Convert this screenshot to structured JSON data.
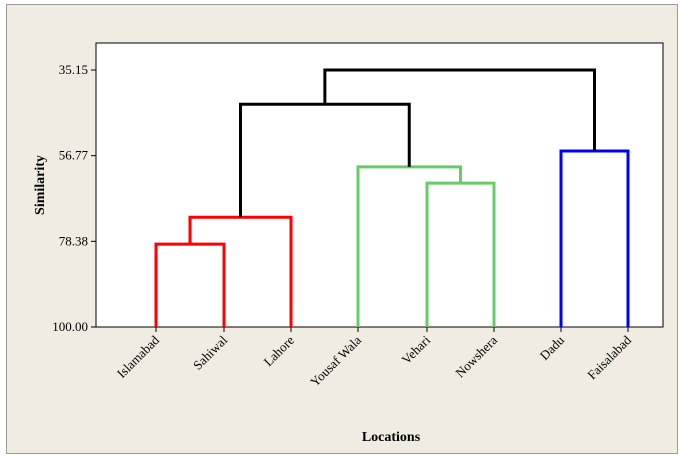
{
  "chart_data": {
    "type": "dendrogram",
    "title": "",
    "xlabel": "Locations",
    "ylabel": "Similarity",
    "ylim": [
      100.0,
      30.0
    ],
    "yticks": [
      35.15,
      56.77,
      78.38,
      100.0
    ],
    "ytick_labels": [
      "35.15",
      "56.77",
      "78.38",
      "100.00"
    ],
    "categories": [
      "Islamabad",
      "Sahiwal",
      "Lahore",
      "Yousaf Wala",
      "Vehari",
      "Nowshera",
      "Dadu",
      "Faisalabad"
    ],
    "merges": [
      {
        "left": 0,
        "right": 1,
        "similarity": 79.1,
        "color": "#ff0000"
      },
      {
        "left": 8,
        "right": 2,
        "similarity": 72.3,
        "color": "#ff0000"
      },
      {
        "left": 4,
        "right": 5,
        "similarity": 63.7,
        "color": "#66cc66"
      },
      {
        "left": 3,
        "right": 10,
        "similarity": 59.6,
        "color": "#66cc66"
      },
      {
        "left": 6,
        "right": 7,
        "similarity": 55.6,
        "color": "#0000ff"
      },
      {
        "left": 9,
        "right": 11,
        "similarity": 43.8,
        "color": "#000000"
      },
      {
        "left": 13,
        "right": 12,
        "similarity": 35.15,
        "color": "#000000"
      }
    ],
    "grid": false,
    "legend": false
  }
}
